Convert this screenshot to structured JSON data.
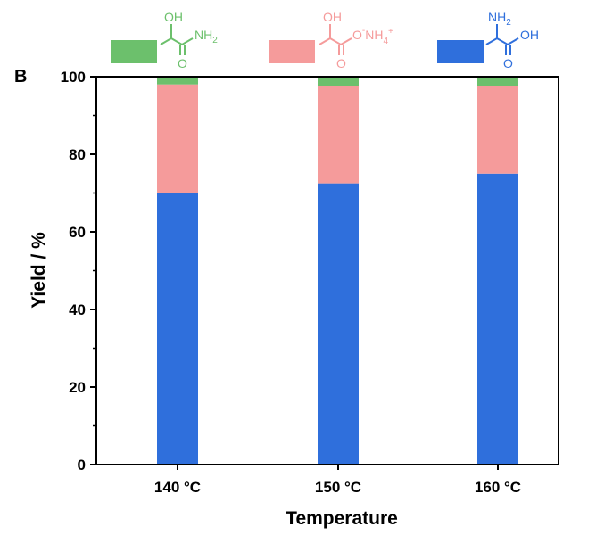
{
  "panel_label": "B",
  "colors": {
    "lactamide": "#6cc06c",
    "ammonium_lactate": "#f59b9b",
    "alanine": "#2f6fdc"
  },
  "legend": [
    {
      "series": "alanine",
      "structure_label_top": "NH2",
      "structure_label_right": "OH",
      "structure_label_bottom": "O"
    },
    {
      "series": "ammonium_lactate",
      "structure_label_top": "OH",
      "structure_label_right": "O-NH4+",
      "structure_label_bottom": "O"
    },
    {
      "series": "lactamide",
      "structure_label_top": "OH",
      "structure_label_right": "NH2",
      "structure_label_bottom": "O"
    }
  ],
  "chart_data": {
    "type": "bar",
    "stacked": true,
    "categories": [
      "140 °C",
      "150 °C",
      "160 °C"
    ],
    "series": [
      {
        "key": "alanine",
        "values": [
          70,
          72.5,
          75
        ]
      },
      {
        "key": "ammonium_lactate",
        "values": [
          28,
          25.2,
          22.5
        ]
      },
      {
        "key": "lactamide",
        "values": [
          1.8,
          2,
          2.3
        ]
      }
    ],
    "xlabel": "Temperature",
    "ylabel": "Yield / %",
    "ylim": [
      0,
      100
    ],
    "yticks": [
      0,
      20,
      40,
      60,
      80,
      100
    ],
    "grid": false
  }
}
